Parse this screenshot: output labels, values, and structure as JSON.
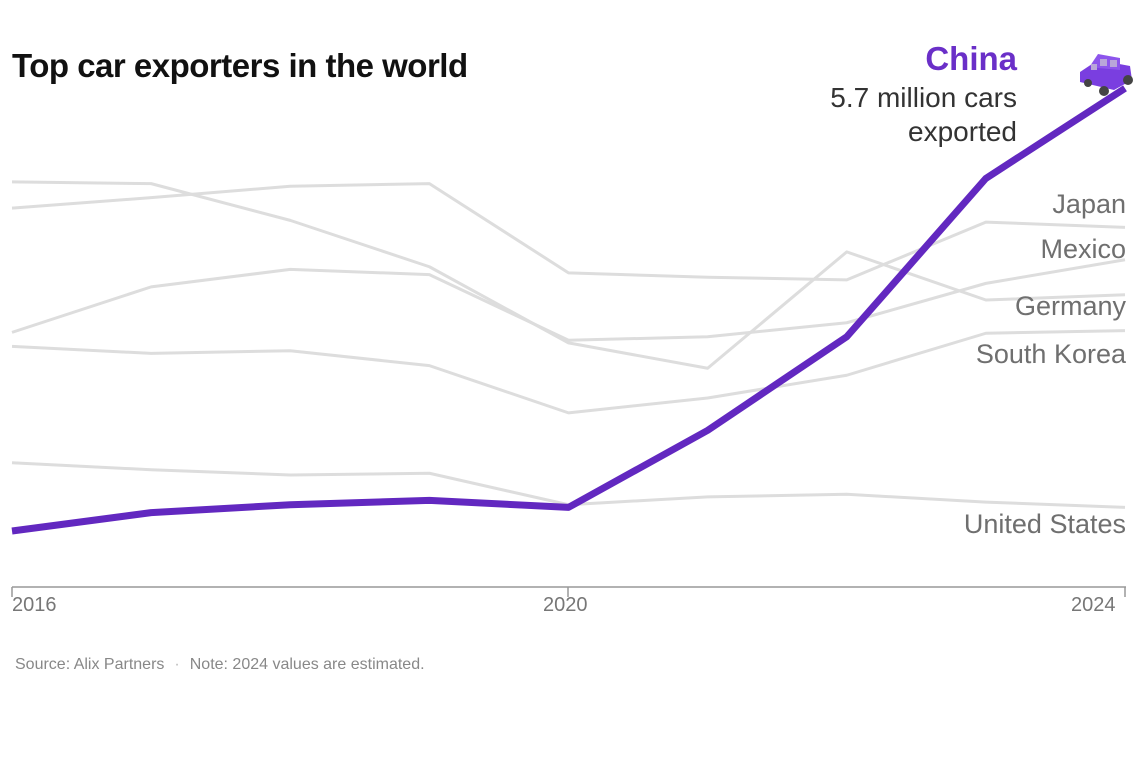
{
  "chart_data": {
    "type": "line",
    "title": "Top car exporters in the world",
    "x": [
      2016,
      2017,
      2018,
      2019,
      2020,
      2021,
      2022,
      2023,
      2024
    ],
    "x_tick_labels": [
      "2016",
      "2020",
      "2024"
    ],
    "xlim": [
      2016,
      2024
    ],
    "ylim": [
      0,
      5.7
    ],
    "y_unit": "million cars",
    "grid": false,
    "series": [
      {
        "name": "China",
        "color": "#6228c0",
        "highlight": true,
        "values": [
          0.64,
          0.85,
          0.94,
          0.99,
          0.91,
          1.79,
          2.86,
          4.67,
          5.7
        ]
      },
      {
        "name": "Japan",
        "color": "#dddddd",
        "values": [
          4.33,
          4.45,
          4.58,
          4.61,
          3.59,
          3.54,
          3.51,
          4.17,
          4.11
        ]
      },
      {
        "name": "Mexico",
        "color": "#dddddd",
        "values": [
          2.91,
          3.43,
          3.63,
          3.57,
          2.82,
          2.86,
          3.02,
          3.47,
          3.74
        ]
      },
      {
        "name": "Germany",
        "color": "#dddddd",
        "values": [
          4.63,
          4.61,
          4.19,
          3.66,
          2.79,
          2.5,
          3.83,
          3.28,
          3.34
        ]
      },
      {
        "name": "South Korea",
        "color": "#dddddd",
        "values": [
          2.75,
          2.67,
          2.7,
          2.53,
          1.99,
          2.16,
          2.42,
          2.9,
          2.93
        ]
      },
      {
        "name": "United States",
        "color": "#dddddd",
        "values": [
          1.42,
          1.34,
          1.28,
          1.3,
          0.94,
          1.03,
          1.06,
          0.97,
          0.91
        ]
      }
    ],
    "annotation": {
      "line1": "5.7 million cars",
      "line2": "exported",
      "icon": "car-icon"
    },
    "source": "Source: Alix Partners",
    "note": "Note: 2024 values are estimated."
  }
}
